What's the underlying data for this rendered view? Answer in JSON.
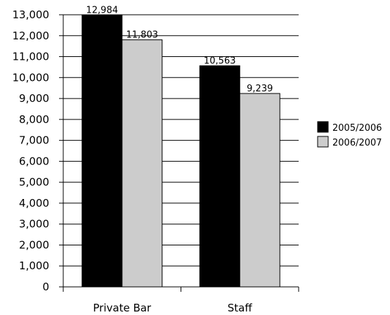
{
  "chart_data": {
    "type": "bar",
    "categories": [
      "Private Bar",
      "Staff"
    ],
    "series": [
      {
        "name": "2005/2006",
        "values": [
          12984,
          10563
        ],
        "color": "#000000"
      },
      {
        "name": "2006/2007",
        "values": [
          11803,
          9239
        ],
        "color": "#cccccc"
      }
    ],
    "data_labels": [
      [
        "12,984",
        "10,563"
      ],
      [
        "11,803",
        "9,239"
      ]
    ],
    "y_ticks": [
      {
        "value": 0,
        "label": "0"
      },
      {
        "value": 1000,
        "label": "1,000"
      },
      {
        "value": 2000,
        "label": "2,000"
      },
      {
        "value": 3000,
        "label": "3,000"
      },
      {
        "value": 4000,
        "label": "4,000"
      },
      {
        "value": 5000,
        "label": "5,000"
      },
      {
        "value": 6000,
        "label": "6,000"
      },
      {
        "value": 7000,
        "label": "7,000"
      },
      {
        "value": 8000,
        "label": "8,000"
      },
      {
        "value": 9000,
        "label": "9,000"
      },
      {
        "value": 10000,
        "label": "10,000"
      },
      {
        "value": 11000,
        "label": "11,000"
      },
      {
        "value": 12000,
        "label": "12,000"
      },
      {
        "value": 13000,
        "label": "13,000"
      }
    ],
    "ylim": [
      0,
      13000
    ],
    "grid": true,
    "legend": "right",
    "title": "",
    "xlabel": "",
    "ylabel": ""
  }
}
